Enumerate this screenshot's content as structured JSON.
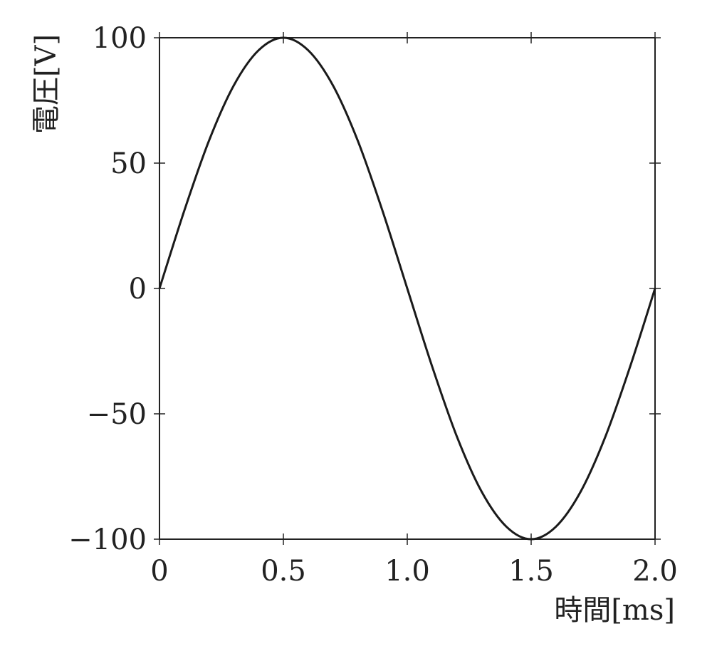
{
  "chart_data": {
    "type": "line",
    "title": "",
    "xlabel": "時間[ms]",
    "ylabel": "電圧[V]",
    "xlim": [
      0,
      2.0
    ],
    "ylim": [
      -100,
      100
    ],
    "x_ticks": [
      0,
      0.5,
      1.0,
      1.5,
      2.0
    ],
    "x_tick_labels": [
      "0",
      "0.5",
      "1.0",
      "1.5",
      "2.0"
    ],
    "y_ticks": [
      100,
      50,
      0,
      -50,
      -100
    ],
    "y_tick_labels": [
      "100",
      "50",
      "0",
      "−50",
      "−100"
    ],
    "grid": false,
    "series": [
      {
        "color": "#1a1a1a",
        "x": [
          0,
          0.1,
          0.2,
          0.3,
          0.4,
          0.5,
          0.6,
          0.7,
          0.8,
          0.9,
          1.0,
          1.1,
          1.2,
          1.3,
          1.4,
          1.5,
          1.6,
          1.7,
          1.8,
          1.9,
          2.0
        ],
        "y": [
          0,
          31,
          59,
          81,
          95,
          100,
          95,
          81,
          59,
          31,
          0,
          -31,
          -59,
          -81,
          -95,
          -100,
          -95,
          -81,
          -59,
          -31,
          0
        ]
      }
    ]
  }
}
